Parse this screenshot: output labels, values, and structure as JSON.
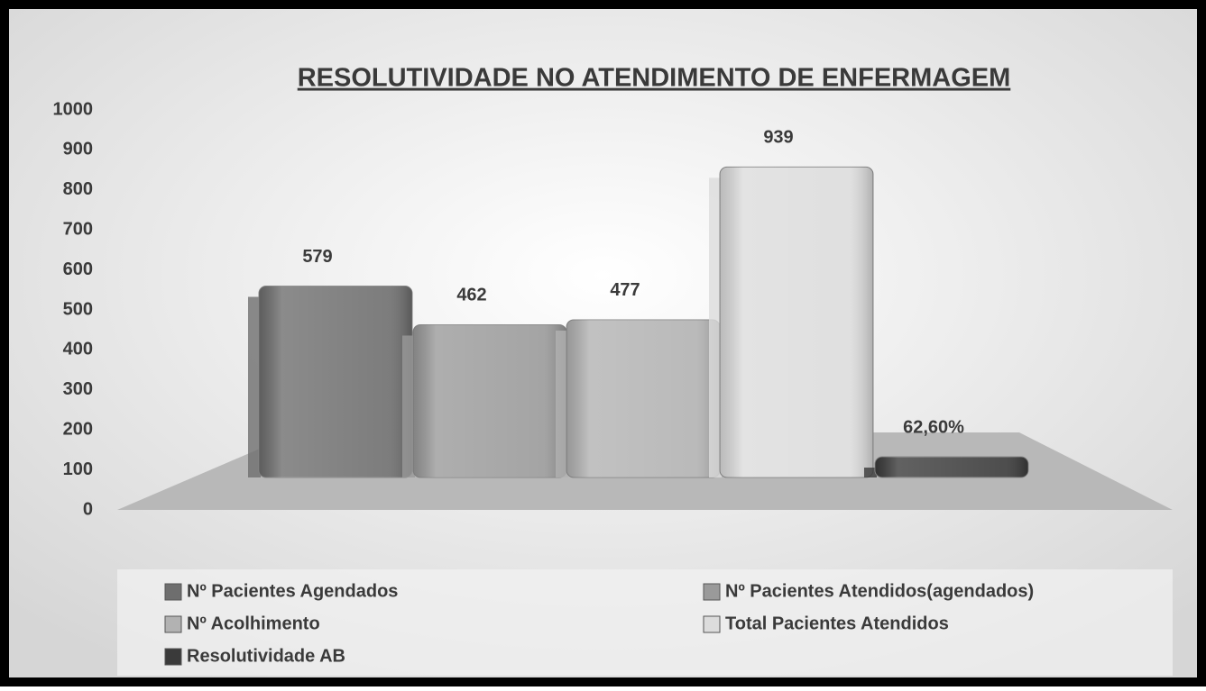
{
  "chart_data": {
    "type": "bar",
    "title": "RESOLUTIVIDADE NO ATENDIMENTO DE ENFERMAGEM",
    "series": [
      {
        "name": "Nº Pacientes Agendados",
        "color": "#6e6e6e",
        "values": [
          579
        ]
      },
      {
        "name": "Nº Pacientes Atendidos(agendados)",
        "color": "#9a9a9a",
        "values": [
          462
        ]
      },
      {
        "name": "Nº Acolhimento",
        "color": "#b2b2b2",
        "values": [
          477
        ]
      },
      {
        "name": "Total Pacientes Atendidos",
        "color": "#dcdcdc",
        "values": [
          939
        ]
      },
      {
        "name": "Resolutividade AB",
        "color": "#3a3a3a",
        "values": [
          62.6
        ],
        "value_labels": [
          "62,60%"
        ]
      }
    ],
    "ylim": [
      0,
      1000
    ],
    "yticks": [
      0,
      100,
      200,
      300,
      400,
      500,
      600,
      700,
      800,
      900,
      1000
    ],
    "legend": "bottom"
  }
}
